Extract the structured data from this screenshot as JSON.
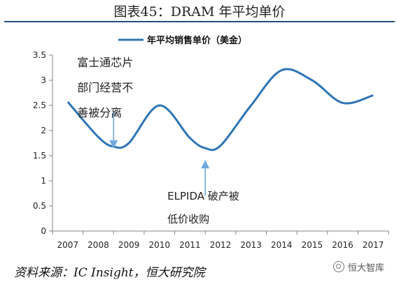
{
  "header": {
    "title": "图表45：DRAM 年平均单价"
  },
  "footer": {
    "source": "资料来源：IC Insight，恒大研究院",
    "watermark": "恒大智库"
  },
  "colors": {
    "series": "#2e75b6",
    "annotation_arrow": "#6fa8dc",
    "axis": "#868686"
  },
  "chart_data": {
    "type": "line",
    "title": "",
    "xlabel": "",
    "ylabel": "",
    "categories": [
      "2007",
      "2008",
      "2009",
      "2010",
      "2011",
      "2012",
      "2013",
      "2014",
      "2015",
      "2016",
      "2017"
    ],
    "series": [
      {
        "name": "年平均销售单价（美金）",
        "x": [
          2007,
          2008,
          2008.5,
          2009,
          2010,
          2011,
          2011.5,
          2012,
          2013,
          2014,
          2015,
          2016,
          2017
        ],
        "values": [
          2.57,
          1.87,
          1.68,
          1.75,
          2.5,
          1.85,
          1.65,
          1.7,
          2.5,
          3.2,
          3.0,
          2.55,
          2.7
        ]
      }
    ],
    "ylim": [
      0,
      3.5
    ],
    "yticks": [
      "0",
      "0.5",
      "1",
      "1.5",
      "2",
      "2.5",
      "3",
      "3.5"
    ],
    "legend": "top-center",
    "grid": false,
    "annotations": [
      {
        "lines": [
          "富士通芯片",
          "部门经营不",
          "善被分离"
        ],
        "x": 2008.5,
        "y": 1.68,
        "text_position": "above"
      },
      {
        "lines": [
          "ELPIDA 破产被",
          "低价收购"
        ],
        "x": 2011.5,
        "y": 1.65,
        "text_position": "below"
      }
    ]
  }
}
